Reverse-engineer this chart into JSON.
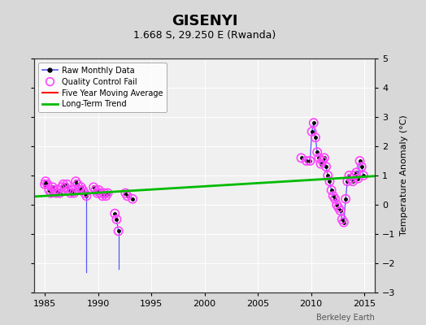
{
  "title": "GISENYI",
  "subtitle": "1.668 S, 29.250 E (Rwanda)",
  "ylabel": "Temperature Anomaly (°C)",
  "credit": "Berkeley Earth",
  "xlim": [
    1984,
    2016
  ],
  "ylim": [
    -3,
    5
  ],
  "yticks": [
    -3,
    -2,
    -1,
    0,
    1,
    2,
    3,
    4,
    5
  ],
  "xticks": [
    1985,
    1990,
    1995,
    2000,
    2005,
    2010,
    2015
  ],
  "background_color": "#e8e8e8",
  "plot_bg": "#f5f5f5",
  "raw_segments": [
    {
      "x": [
        1985.0,
        1985.083,
        1985.25,
        1985.417,
        1985.583,
        1985.75,
        1985.917,
        1986.083,
        1986.25,
        1986.417,
        1986.583,
        1986.75,
        1986.917,
        1987.083,
        1987.25,
        1987.417,
        1987.583,
        1987.75,
        1987.917,
        1988.083,
        1988.25,
        1988.417,
        1988.583,
        1988.75,
        1988.917
      ],
      "y": [
        0.7,
        0.8,
        0.7,
        0.5,
        0.4,
        0.6,
        0.5,
        0.4,
        0.5,
        0.4,
        0.6,
        0.7,
        0.6,
        0.7,
        0.5,
        0.4,
        0.5,
        0.4,
        0.8,
        0.7,
        0.5,
        0.6,
        0.5,
        0.4,
        0.3
      ]
    },
    {
      "x": [
        1988.917,
        1988.917
      ],
      "y": [
        0.3,
        -2.3
      ]
    },
    {
      "x": [
        1989.583,
        1989.75,
        1989.917,
        1990.083,
        1990.25,
        1990.417,
        1990.583,
        1990.75,
        1990.917
      ],
      "y": [
        0.6,
        0.5,
        0.4,
        0.5,
        0.4,
        0.3,
        0.4,
        0.3,
        0.4
      ]
    },
    {
      "x": [
        1991.583,
        1991.75,
        1991.917
      ],
      "y": [
        -0.3,
        -0.5,
        -0.9
      ]
    },
    {
      "x": [
        1991.917,
        1991.917
      ],
      "y": [
        -0.9,
        -2.2
      ]
    },
    {
      "x": [
        1992.583
      ],
      "y": [
        0.4
      ]
    },
    {
      "x": [
        1992.75,
        1993.25
      ],
      "y": [
        0.3,
        0.2
      ]
    },
    {
      "x": [
        2009.083,
        2009.583,
        2009.917,
        2010.083,
        2010.25,
        2010.417,
        2010.583,
        2010.75,
        2010.917,
        2011.083,
        2011.25,
        2011.417,
        2011.583,
        2011.75,
        2011.917,
        2012.083,
        2012.25,
        2012.417,
        2012.583,
        2012.75,
        2012.917,
        2013.083,
        2013.25,
        2013.417,
        2013.583,
        2013.75,
        2013.917,
        2014.083,
        2014.25,
        2014.417,
        2014.583,
        2014.75,
        2014.917
      ],
      "y": [
        1.6,
        1.5,
        1.5,
        2.5,
        2.8,
        2.3,
        1.8,
        1.6,
        1.4,
        1.5,
        1.6,
        1.3,
        1.0,
        0.8,
        0.5,
        0.3,
        0.2,
        0.0,
        -0.1,
        -0.2,
        -0.5,
        -0.6,
        0.2,
        0.8,
        1.0,
        0.9,
        0.8,
        1.0,
        1.1,
        0.9,
        1.5,
        1.3,
        1.0
      ]
    }
  ],
  "all_points_x": [
    1985.0,
    1985.083,
    1985.25,
    1985.417,
    1985.583,
    1985.75,
    1985.917,
    1986.083,
    1986.25,
    1986.417,
    1986.583,
    1986.75,
    1986.917,
    1987.083,
    1987.25,
    1987.417,
    1987.583,
    1987.75,
    1987.917,
    1988.083,
    1988.25,
    1988.417,
    1988.583,
    1988.75,
    1988.917,
    1989.583,
    1989.75,
    1989.917,
    1990.083,
    1990.25,
    1990.417,
    1990.583,
    1990.75,
    1990.917,
    1991.583,
    1991.75,
    1991.917,
    1992.583,
    1992.75,
    1993.25,
    2009.083,
    2009.583,
    2009.917,
    2010.083,
    2010.25,
    2010.417,
    2010.583,
    2010.75,
    2010.917,
    2011.083,
    2011.25,
    2011.417,
    2011.583,
    2011.75,
    2011.917,
    2012.083,
    2012.25,
    2012.417,
    2012.583,
    2012.75,
    2012.917,
    2013.083,
    2013.25,
    2013.417,
    2013.583,
    2013.75,
    2013.917,
    2014.083,
    2014.25,
    2014.417,
    2014.583,
    2014.75,
    2014.917
  ],
  "all_points_y": [
    0.7,
    0.8,
    0.7,
    0.5,
    0.4,
    0.6,
    0.5,
    0.4,
    0.5,
    0.4,
    0.6,
    0.7,
    0.6,
    0.7,
    0.5,
    0.4,
    0.5,
    0.4,
    0.8,
    0.7,
    0.5,
    0.6,
    0.5,
    0.4,
    0.3,
    0.6,
    0.5,
    0.4,
    0.5,
    0.4,
    0.3,
    0.4,
    0.3,
    0.4,
    -0.3,
    -0.5,
    -0.9,
    0.4,
    0.3,
    0.2,
    1.6,
    1.5,
    1.5,
    2.5,
    2.8,
    2.3,
    1.8,
    1.6,
    1.4,
    1.5,
    1.6,
    1.3,
    1.0,
    0.8,
    0.5,
    0.3,
    0.2,
    0.0,
    -0.1,
    -0.2,
    -0.5,
    -0.6,
    0.2,
    0.8,
    1.0,
    0.9,
    0.8,
    1.0,
    1.1,
    0.9,
    1.5,
    1.3,
    1.0
  ],
  "qc_x": [
    1985.0,
    1985.083,
    1985.25,
    1985.417,
    1985.583,
    1985.75,
    1985.917,
    1986.083,
    1986.25,
    1986.417,
    1986.583,
    1986.75,
    1986.917,
    1987.083,
    1987.25,
    1987.417,
    1987.583,
    1987.75,
    1987.917,
    1988.083,
    1988.25,
    1988.417,
    1988.583,
    1988.75,
    1988.917,
    1989.583,
    1989.75,
    1989.917,
    1990.083,
    1990.25,
    1990.417,
    1990.583,
    1990.75,
    1990.917,
    1991.583,
    1991.75,
    1991.917,
    1992.583,
    1992.75,
    1993.25,
    2009.083,
    2009.583,
    2009.917,
    2010.083,
    2010.25,
    2010.417,
    2010.583,
    2010.75,
    2010.917,
    2011.083,
    2011.25,
    2011.417,
    2011.583,
    2011.75,
    2011.917,
    2012.083,
    2012.25,
    2012.417,
    2012.583,
    2012.75,
    2012.917,
    2013.083,
    2013.25,
    2013.417,
    2013.583,
    2013.75,
    2013.917,
    2014.083,
    2014.25,
    2014.417,
    2014.583,
    2014.75,
    2014.917
  ],
  "qc_y": [
    0.7,
    0.8,
    0.7,
    0.5,
    0.4,
    0.6,
    0.5,
    0.4,
    0.5,
    0.4,
    0.6,
    0.7,
    0.6,
    0.7,
    0.5,
    0.4,
    0.5,
    0.4,
    0.8,
    0.7,
    0.5,
    0.6,
    0.5,
    0.4,
    0.3,
    0.6,
    0.5,
    0.4,
    0.5,
    0.4,
    0.3,
    0.4,
    0.3,
    0.4,
    -0.3,
    -0.5,
    -0.9,
    0.4,
    0.3,
    0.2,
    1.6,
    1.5,
    1.5,
    2.5,
    2.8,
    2.3,
    1.8,
    1.6,
    1.4,
    1.5,
    1.6,
    1.3,
    1.0,
    0.8,
    0.5,
    0.3,
    0.2,
    0.0,
    -0.1,
    -0.2,
    -0.5,
    -0.6,
    0.2,
    0.8,
    1.0,
    0.9,
    0.8,
    1.0,
    1.1,
    0.9,
    1.5,
    1.3,
    1.0
  ],
  "trend_x": [
    1984,
    2016
  ],
  "trend_y": [
    0.28,
    0.98
  ],
  "colors": {
    "raw_line": "#5555ff",
    "raw_dot": "#000000",
    "qc_fail": "#ff44ff",
    "moving_avg": "#ff0000",
    "trend": "#00bb00",
    "background": "#d8d8d8",
    "plot_bg": "#f0f0f0",
    "grid": "#ffffff"
  }
}
